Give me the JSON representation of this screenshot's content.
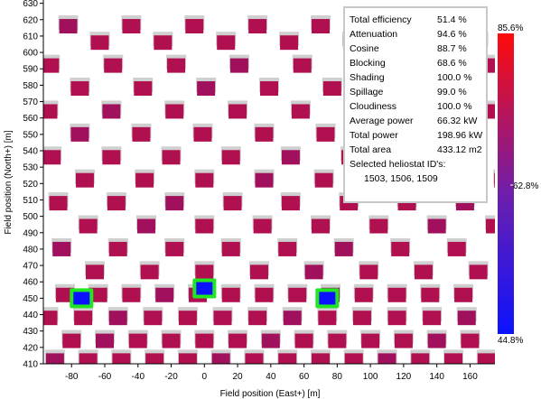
{
  "chart_data": {
    "type": "scatter",
    "xlabel": "Field position (East+) [m]",
    "ylabel": "Field position (North+) [m]",
    "xlim": [
      -97,
      175
    ],
    "ylim": [
      410,
      632
    ],
    "xticks": [
      -80,
      -60,
      -40,
      -20,
      0,
      20,
      40,
      60,
      80,
      100,
      120,
      140,
      160
    ],
    "yticks": [
      410,
      420,
      430,
      440,
      450,
      460,
      470,
      480,
      490,
      500,
      510,
      520,
      530,
      540,
      550,
      560,
      570,
      580,
      590,
      600,
      610,
      620,
      630
    ],
    "grid": false,
    "legend": "none",
    "selected_heliostats": [
      {
        "x": -74,
        "y": 450,
        "efficiency": 44.8
      },
      {
        "x": 0,
        "y": 456,
        "efficiency": 44.8
      },
      {
        "x": 74,
        "y": 450,
        "efficiency": 44.8
      }
    ],
    "heliostat_rows": [
      {
        "y": 616,
        "x_start": -82,
        "x_step": 38,
        "count": 9
      },
      {
        "y": 606,
        "x_start": -63,
        "x_step": 38,
        "count": 8
      },
      {
        "y": 592,
        "x_start": -93,
        "x_step": 38,
        "count": 10
      },
      {
        "y": 578,
        "x_start": -75,
        "x_step": 38,
        "count": 9
      },
      {
        "y": 564,
        "x_start": -94,
        "x_step": 38,
        "count": 10
      },
      {
        "y": 550,
        "x_start": -75,
        "x_step": 37,
        "count": 10
      },
      {
        "y": 536,
        "x_start": -92,
        "x_step": 36,
        "count": 10
      },
      {
        "y": 522,
        "x_start": -72,
        "x_step": 36,
        "count": 10
      },
      {
        "y": 508,
        "x_start": -88,
        "x_step": 35,
        "count": 11
      },
      {
        "y": 494,
        "x_start": -70,
        "x_step": 35,
        "count": 10
      },
      {
        "y": 480,
        "x_start": -86,
        "x_step": 34,
        "count": 11
      },
      {
        "y": 466,
        "x_start": -66,
        "x_step": 33,
        "count": 11
      },
      {
        "y": 452,
        "x_start": -84,
        "x_step": 20,
        "count": 13
      },
      {
        "y": 438,
        "x_start": -94,
        "x_step": 21,
        "count": 13
      },
      {
        "y": 424,
        "x_start": -80,
        "x_step": 20,
        "count": 13
      },
      {
        "y": 412,
        "x_start": -90,
        "x_step": 20,
        "count": 14
      }
    ],
    "colorbar": {
      "min_label": "44.8%",
      "mid_label": "62.8%",
      "max_label": "85.6%",
      "min_color": "#0b12ff",
      "mid_color": "#8c1e8c",
      "max_color": "#ff0a0a",
      "cell_color": "#b01050",
      "shadow_color": "#cfcfcf",
      "outline_color": "#22e622"
    }
  },
  "info_panel": {
    "rows": [
      {
        "label": "Total efficiency",
        "value": "51.4 %"
      },
      {
        "label": "Attenuation",
        "value": "94.6 %"
      },
      {
        "label": "Cosine",
        "value": "88.7 %"
      },
      {
        "label": "Blocking",
        "value": "68.6 %"
      },
      {
        "label": "Shading",
        "value": "100.0 %"
      },
      {
        "label": "Spillage",
        "value": "99.0 %"
      },
      {
        "label": "Cloudiness",
        "value": "100.0 %"
      },
      {
        "label": "Average power",
        "value": "66.32 kW"
      },
      {
        "label": "Total power",
        "value": "198.96 kW"
      },
      {
        "label": "Total area",
        "value": "433.12 m2"
      }
    ],
    "ids_title": "Selected heliostat ID's:",
    "ids": "1503, 1506, 1509"
  }
}
